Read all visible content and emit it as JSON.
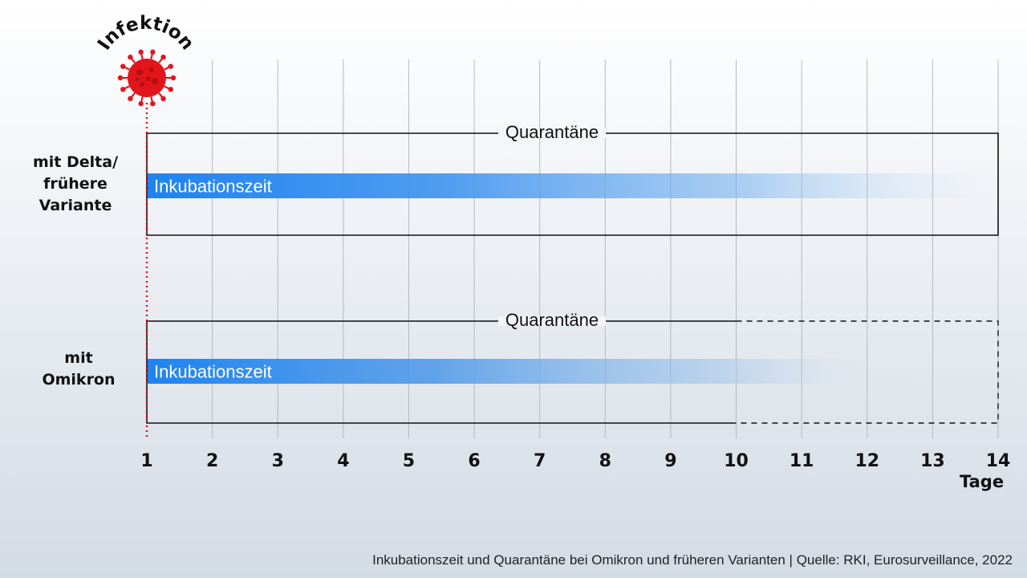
{
  "chart_data": {
    "type": "timeline",
    "x": [
      1,
      2,
      3,
      4,
      5,
      6,
      7,
      8,
      9,
      10,
      11,
      12,
      13,
      14
    ],
    "xlim": [
      1,
      14
    ],
    "xlabel": "Tage",
    "grid": true,
    "infection_marker": {
      "label": "Infektion",
      "day": 1,
      "color": "#e0161c"
    },
    "rows": [
      {
        "label_lines": [
          "mit Delta/",
          "frühere",
          "Variante"
        ],
        "quarantine": {
          "label": "Quarantäne",
          "start": 1,
          "end": 14,
          "dashed_from": null
        },
        "incubation": {
          "label": "Inkubationszeit",
          "start": 1,
          "end": 14
        }
      },
      {
        "label_lines": [
          "mit",
          "Omikron"
        ],
        "quarantine": {
          "label": "Quarantäne",
          "start": 1,
          "end": 14,
          "dashed_from": 10
        },
        "incubation": {
          "label": "Inkubationszeit",
          "start": 1,
          "end": 12
        }
      }
    ]
  },
  "colors": {
    "bar": "#1e83f0",
    "infection": "#e0161c",
    "grid": "#b4b9c0"
  },
  "footer": "Inkubationszeit und Quarantäne bei Omikron und früheren Varianten  |  Quelle: RKI, Eurosurveillance, 2022"
}
